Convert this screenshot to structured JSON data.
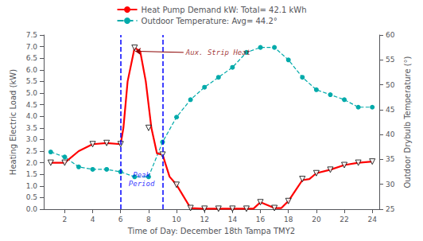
{
  "chart_data": {
    "type": "line",
    "xlabel": "Time of Day: December 18th Tampa TMY2",
    "ylabel": "Heating Electric Load (kW)",
    "y2label": "Outdoor Drybulb Temperature (°)",
    "xlim": [
      0.5,
      24.5
    ],
    "xticks": [
      2,
      4,
      6,
      8,
      10,
      12,
      14,
      16,
      18,
      20,
      22,
      24
    ],
    "ylim": [
      0.0,
      7.5
    ],
    "yticks": [
      {
        "value": 0.0,
        "label": "0.0"
      },
      0.5,
      {
        "value": 1.0,
        "label": "1.0"
      },
      1.5,
      {
        "value": 2.0,
        "label": "2.0"
      },
      2.5,
      {
        "value": 3.0,
        "label": "3.0"
      },
      3.5,
      {
        "value": 4.0,
        "label": "4.0"
      },
      4.5,
      {
        "value": 5.0,
        "label": "5.0"
      },
      5.5,
      {
        "value": 6.0,
        "label": "6.0"
      },
      6.5,
      {
        "value": 7.0,
        "label": "7.0"
      },
      7.5
    ],
    "y2lim": [
      25,
      60
    ],
    "y2ticks": [
      25,
      30,
      35,
      40,
      45,
      50,
      55,
      60
    ],
    "grid": false,
    "legend": "top",
    "series": [
      {
        "name": "Heat Pump Demand kW: Total= 42.1 kWh",
        "type": "line",
        "color": "red",
        "marker": "none",
        "line_style": "solid",
        "x": [
          1,
          2,
          3,
          4,
          5,
          6,
          6.2,
          6.5,
          7.0,
          7.4,
          7.8,
          8.2,
          8.6,
          9.0,
          9.5,
          10.0,
          11.0,
          12.0,
          13.0,
          13.5,
          14.0,
          14.5,
          15.0,
          15.5,
          16.0,
          17.0,
          17.5,
          18.0,
          18.5,
          19.0,
          19.5,
          20.0,
          21.0,
          22.0,
          23.0,
          24.0
        ],
        "values": [
          2.0,
          2.0,
          2.5,
          2.8,
          2.85,
          2.8,
          3.5,
          5.5,
          6.95,
          6.8,
          5.5,
          3.5,
          2.4,
          2.35,
          1.4,
          1.05,
          0.05,
          0.02,
          0.02,
          0.02,
          0.02,
          0.02,
          0.02,
          0.02,
          0.3,
          0.05,
          0.05,
          0.35,
          0.8,
          1.25,
          1.3,
          1.55,
          1.7,
          1.9,
          2.0,
          2.05
        ]
      },
      {
        "type": "scatter",
        "color": "black",
        "marker": "triangle-down",
        "x": [
          1,
          2,
          4,
          5,
          6,
          7,
          8,
          9,
          10,
          11,
          12,
          13,
          14,
          15,
          16,
          17,
          18,
          19,
          20,
          21,
          22,
          23,
          24
        ],
        "values": [
          2.0,
          2.0,
          2.8,
          2.85,
          2.8,
          6.95,
          3.5,
          2.35,
          1.05,
          0.05,
          0.02,
          0.02,
          0.02,
          0.02,
          0.3,
          0.05,
          0.35,
          1.3,
          1.55,
          1.7,
          1.9,
          2.0,
          2.05
        ]
      },
      {
        "name": "Outdoor Temperature: Avg= 44.2°",
        "type": "line",
        "color": "#00aaaa",
        "marker": "circle",
        "line_style": "dashed",
        "axis": "y2",
        "x": [
          1,
          2,
          3,
          4,
          5,
          6,
          7,
          8,
          9,
          10,
          11,
          12,
          13,
          14,
          15,
          16,
          17,
          18,
          19,
          20,
          21,
          22,
          23,
          24
        ],
        "values": [
          36.5,
          35.5,
          33.5,
          33.0,
          33.0,
          32.5,
          31.5,
          31.5,
          38.5,
          43.5,
          47.0,
          49.5,
          51.5,
          53.5,
          56.5,
          57.5,
          57.5,
          55.0,
          51.5,
          49.0,
          48.0,
          47.0,
          45.5,
          45.5
        ]
      }
    ],
    "vlines": [
      {
        "x": 6,
        "color": "blue",
        "line_style": "dashed"
      },
      {
        "x": 9,
        "color": "blue",
        "line_style": "dashed"
      }
    ],
    "annotations": [
      {
        "text": "Peak\nPeriod",
        "x": 7.5,
        "y": 1.65,
        "color": "blue"
      },
      {
        "text": "Aux. Strip Heat",
        "x": 10.5,
        "y": 6.75,
        "arrow_x": 7.05,
        "arrow_y": 6.8,
        "color": "darkred"
      }
    ]
  }
}
